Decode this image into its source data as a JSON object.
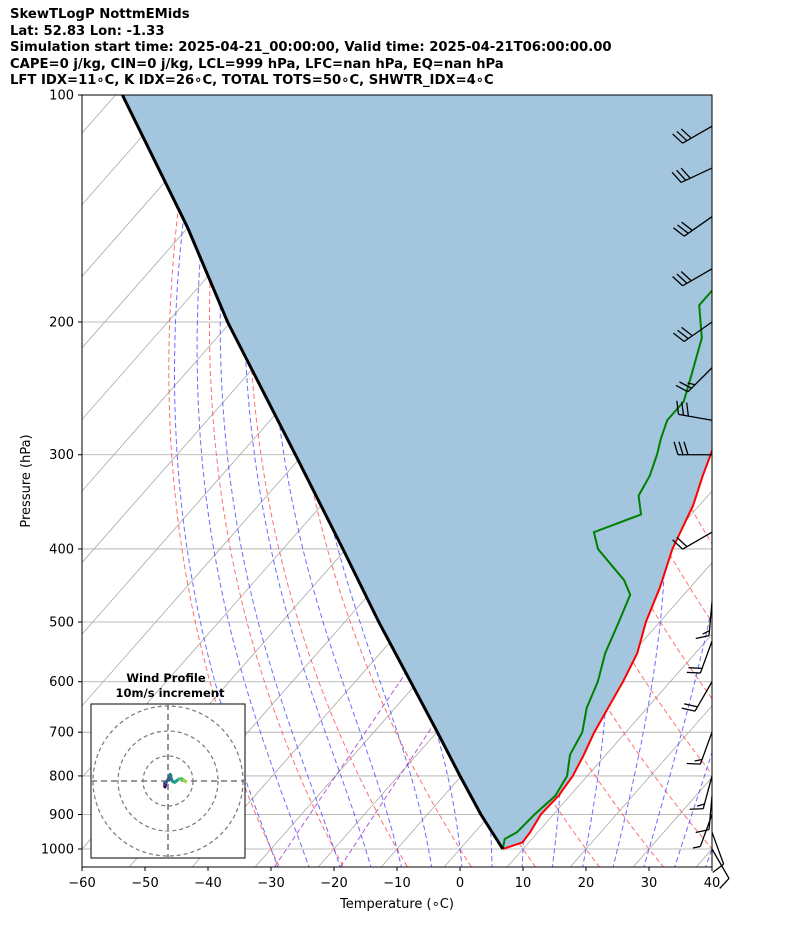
{
  "header": {
    "line1": "SkewTLogP NottmEMids",
    "line2": "Lat: 52.83   Lon: -1.33",
    "line3": "Simulation start time: 2025-04-21_00:00:00, Valid time: 2025-04-21T06:00:00.00",
    "line4": "CAPE=0 j/kg, CIN=0 j/kg, LCL=999 hPa, LFC=nan hPa, EQ=nan hPa",
    "line5": "LFT IDX=11∘C, K IDX=26∘C, TOTAL TOTS=50∘C, SHWTR_IDX=4∘C"
  },
  "chart_data": {
    "type": "line",
    "subtype": "skew-t log-p",
    "xlabel": "Temperature (∘C)",
    "ylabel": "Pressure (hPa)",
    "xlim": [
      -60,
      40
    ],
    "ylim_hpa": [
      1050,
      100
    ],
    "y_scale": "log",
    "grid": true,
    "x_ticks": [
      -60,
      -50,
      -40,
      -30,
      -20,
      -10,
      0,
      10,
      20,
      30,
      40
    ],
    "y_ticks": [
      100,
      200,
      300,
      400,
      500,
      600,
      700,
      800,
      900,
      1000
    ],
    "colors": {
      "temperature": "#ff0000",
      "dewpoint": "#008000",
      "parcel": "#000000",
      "shade": "#a3c6de",
      "dry_adiabats": "#ff4040",
      "moist_adiabats": "#3b3bff",
      "mixing_ratio": "#9932cc",
      "isotherms": "#a9a9a9"
    },
    "series": [
      {
        "key": "temperature",
        "points": [
          [
            1000,
            6.8
          ],
          [
            980,
            9.0
          ],
          [
            950,
            8.8
          ],
          [
            900,
            8.0
          ],
          [
            850,
            8.2
          ],
          [
            800,
            7.7
          ],
          [
            750,
            6.5
          ],
          [
            700,
            5.0
          ],
          [
            650,
            3.8
          ],
          [
            600,
            2.5
          ],
          [
            550,
            0.8
          ],
          [
            500,
            -2.2
          ],
          [
            450,
            -4.8
          ],
          [
            400,
            -8.2
          ],
          [
            350,
            -11.0
          ],
          [
            320,
            -13.6
          ],
          [
            300,
            -15.3
          ],
          [
            280,
            -17.2
          ],
          [
            265,
            -18.7
          ],
          [
            250,
            -18.0
          ],
          [
            230,
            -21.5
          ],
          [
            200,
            -25.5
          ],
          [
            170,
            -29.7
          ],
          [
            150,
            -33.4
          ],
          [
            130,
            -38.0
          ],
          [
            115,
            -41.3
          ],
          [
            100,
            -46.0
          ]
        ]
      },
      {
        "key": "dewpoint",
        "points": [
          [
            1000,
            6.8
          ],
          [
            970,
            5.7
          ],
          [
            950,
            6.7
          ],
          [
            900,
            7.0
          ],
          [
            850,
            7.7
          ],
          [
            800,
            6.8
          ],
          [
            750,
            4.3
          ],
          [
            700,
            3.1
          ],
          [
            650,
            0.4
          ],
          [
            600,
            -1.5
          ],
          [
            550,
            -4.3
          ],
          [
            500,
            -6.5
          ],
          [
            460,
            -8.5
          ],
          [
            440,
            -11.5
          ],
          [
            400,
            -20.0
          ],
          [
            380,
            -23.0
          ],
          [
            360,
            -18.0
          ],
          [
            340,
            -21.0
          ],
          [
            320,
            -22.0
          ],
          [
            300,
            -23.8
          ],
          [
            285,
            -25.5
          ],
          [
            270,
            -27.0
          ],
          [
            255,
            -27.0
          ],
          [
            235,
            -29.5
          ],
          [
            210,
            -33.0
          ],
          [
            190,
            -38.0
          ],
          [
            175,
            -38.0
          ],
          [
            150,
            -40.0
          ],
          [
            120,
            -45.5
          ],
          [
            100,
            -53.5
          ]
        ]
      },
      {
        "key": "parcel",
        "points": [
          [
            1000,
            6.8
          ],
          [
            900,
            -1.5
          ],
          [
            800,
            -10.2
          ],
          [
            700,
            -19.9
          ],
          [
            600,
            -31.2
          ],
          [
            500,
            -44.6
          ],
          [
            400,
            -60.5
          ],
          [
            300,
            -81.2
          ],
          [
            200,
            -110.5
          ],
          [
            150,
            -130.0
          ],
          [
            100,
            -158.9
          ]
        ]
      }
    ],
    "wind_barbs": [
      {
        "p": 1000,
        "speed_kt": 10,
        "dir_deg": 150
      },
      {
        "p": 950,
        "speed_kt": 10,
        "dir_deg": 160
      },
      {
        "p": 900,
        "speed_kt": 5,
        "dir_deg": 200
      },
      {
        "p": 850,
        "speed_kt": 10,
        "dir_deg": 185
      },
      {
        "p": 800,
        "speed_kt": 15,
        "dir_deg": 195
      },
      {
        "p": 700,
        "speed_kt": 15,
        "dir_deg": 200
      },
      {
        "p": 600,
        "speed_kt": 20,
        "dir_deg": 210
      },
      {
        "p": 530,
        "speed_kt": 20,
        "dir_deg": 200
      },
      {
        "p": 470,
        "speed_kt": 15,
        "dir_deg": 185
      },
      {
        "p": 380,
        "speed_kt": 20,
        "dir_deg": 240
      },
      {
        "p": 300,
        "speed_kt": 30,
        "dir_deg": 270
      },
      {
        "p": 270,
        "speed_kt": 30,
        "dir_deg": 280
      },
      {
        "p": 230,
        "speed_kt": 25,
        "dir_deg": 225
      },
      {
        "p": 200,
        "speed_kt": 30,
        "dir_deg": 235
      },
      {
        "p": 170,
        "speed_kt": 30,
        "dir_deg": 240
      },
      {
        "p": 145,
        "speed_kt": 30,
        "dir_deg": 235
      },
      {
        "p": 125,
        "speed_kt": 30,
        "dir_deg": 245
      },
      {
        "p": 110,
        "speed_kt": 30,
        "dir_deg": 240
      }
    ],
    "hodograph": {
      "title": "Wind Profile",
      "subtitle": "10m/s increment",
      "ring_count": 3,
      "points": [
        [
          -1.2,
          -2.4
        ],
        [
          -1.3,
          -2.0
        ],
        [
          -1.0,
          -1.7
        ],
        [
          -1.2,
          -1.4
        ],
        [
          -0.9,
          -1.1
        ],
        [
          -1.3,
          -0.8
        ],
        [
          -0.8,
          -0.6
        ],
        [
          0.2,
          0.9
        ],
        [
          0.5,
          0.4
        ],
        [
          0.8,
          2.6
        ],
        [
          1.1,
          2.3
        ],
        [
          1.4,
          0.6
        ],
        [
          2.0,
          -0.3
        ],
        [
          2.8,
          -0.5
        ],
        [
          3.6,
          0.2
        ],
        [
          4.5,
          0.8
        ],
        [
          5.4,
          0.9
        ],
        [
          5.9,
          0.6
        ],
        [
          6.4,
          0.3
        ],
        [
          6.8,
          0.0
        ],
        [
          7.0,
          -0.3
        ]
      ]
    }
  }
}
